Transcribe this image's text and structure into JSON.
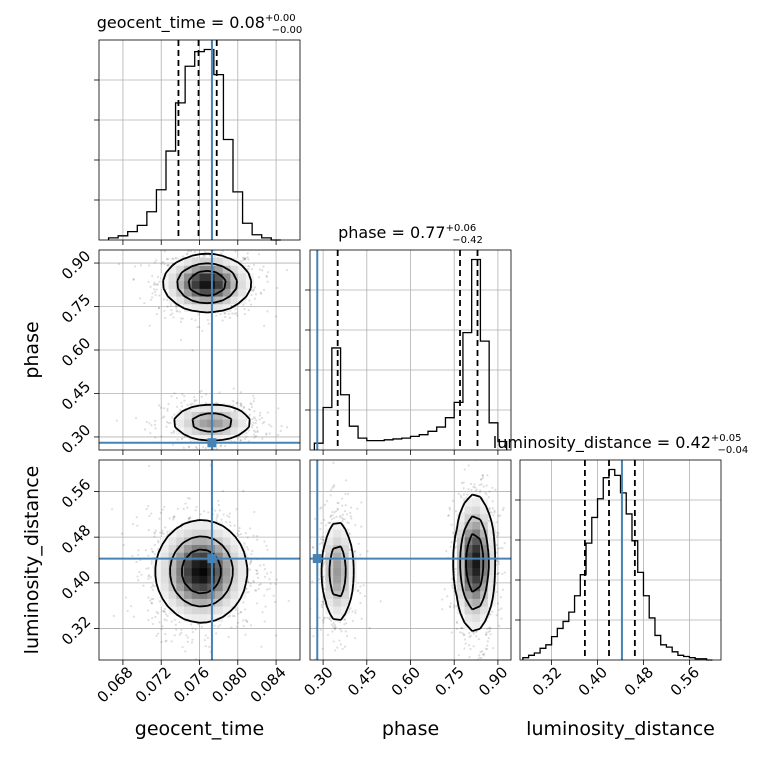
{
  "chart_data": {
    "type": "corner",
    "truth_color": "#4682b4",
    "parameters": [
      {
        "name": "geocent_time",
        "label": "geocent_time",
        "range": [
          0.0655,
          0.0865
        ],
        "ticks": [
          "0.068",
          "0.072",
          "0.076",
          "0.080",
          "0.084"
        ],
        "truth": 0.0773,
        "quantiles": [
          0.0738,
          0.0759,
          0.0778
        ],
        "title_main": "geocent_time = 0.08",
        "title_sup": "+0.00",
        "title_sub": "−0.00",
        "hist_edges": [
          0.0665,
          0.0675,
          0.0685,
          0.0695,
          0.0705,
          0.0715,
          0.0725,
          0.0735,
          0.0745,
          0.0755,
          0.0765,
          0.0775,
          0.0785,
          0.0795,
          0.0805,
          0.0815,
          0.0825,
          0.0835,
          0.0845
        ],
        "hist_counts": [
          2,
          4,
          8,
          14,
          27,
          48,
          85,
          131,
          166,
          180,
          182,
          158,
          96,
          46,
          16,
          5,
          2,
          0
        ]
      },
      {
        "name": "phase",
        "label": "phase",
        "range": [
          0.255,
          0.945
        ],
        "ticks": [
          "0.30",
          "0.45",
          "0.60",
          "0.75",
          "0.90"
        ],
        "truth": 0.28,
        "quantiles": [
          0.35,
          0.77,
          0.83
        ],
        "title_main": "phase = 0.77",
        "title_sup": "+0.06",
        "title_sub": "−0.42",
        "hist_edges": [
          0.27,
          0.3,
          0.33,
          0.36,
          0.39,
          0.42,
          0.45,
          0.48,
          0.51,
          0.54,
          0.57,
          0.6,
          0.63,
          0.66,
          0.69,
          0.72,
          0.75,
          0.78,
          0.81,
          0.84,
          0.87,
          0.9,
          0.93
        ],
        "hist_counts": [
          8,
          50,
          120,
          65,
          28,
          14,
          11,
          11,
          12,
          13,
          14,
          16,
          18,
          22,
          27,
          38,
          56,
          138,
          224,
          128,
          32,
          10
        ]
      },
      {
        "name": "luminosity_distance",
        "label": "luminosity_distance",
        "range": [
          0.265,
          0.615
        ],
        "ticks": [
          "0.32",
          "0.40",
          "0.48",
          "0.56"
        ],
        "truth": 0.4425,
        "quantiles": [
          0.378,
          0.42,
          0.465
        ],
        "title_main": "luminosity_distance = 0.42",
        "title_sup": "+0.05",
        "title_sub": "−0.04",
        "hist_edges": [
          0.27,
          0.28,
          0.29,
          0.3,
          0.31,
          0.32,
          0.33,
          0.34,
          0.35,
          0.36,
          0.37,
          0.38,
          0.39,
          0.4,
          0.41,
          0.42,
          0.43,
          0.44,
          0.45,
          0.46,
          0.47,
          0.48,
          0.49,
          0.5,
          0.51,
          0.52,
          0.53,
          0.54,
          0.55,
          0.56,
          0.57,
          0.58,
          0.59,
          0.6
        ],
        "hist_counts": [
          2,
          4,
          6,
          10,
          13,
          20,
          27,
          33,
          41,
          55,
          73,
          100,
          122,
          138,
          156,
          163,
          158,
          143,
          125,
          102,
          75,
          55,
          36,
          21,
          13,
          11,
          7,
          4,
          3,
          2,
          1,
          1,
          0
        ]
      }
    ],
    "density_modes": [
      {
        "x": "geocent_time",
        "y": "phase",
        "centers": [
          [
            0.0768,
            0.83
          ],
          [
            0.0773,
            0.35
          ]
        ],
        "spreads": [
          [
            0.0023,
            0.05
          ],
          [
            0.0023,
            0.035
          ]
        ],
        "weights": [
          0.62,
          0.38
        ]
      },
      {
        "x": "geocent_time",
        "y": "luminosity_distance",
        "centers": [
          [
            0.0762,
            0.42
          ]
        ],
        "spreads": [
          [
            0.0024,
            0.045
          ]
        ],
        "weights": [
          1.0
        ]
      },
      {
        "x": "phase",
        "y": "luminosity_distance",
        "centers": [
          [
            0.35,
            0.42
          ],
          [
            0.82,
            0.435
          ]
        ],
        "spreads": [
          [
            0.03,
            0.05
          ],
          [
            0.035,
            0.06
          ]
        ],
        "weights": [
          0.38,
          0.62
        ]
      }
    ]
  }
}
